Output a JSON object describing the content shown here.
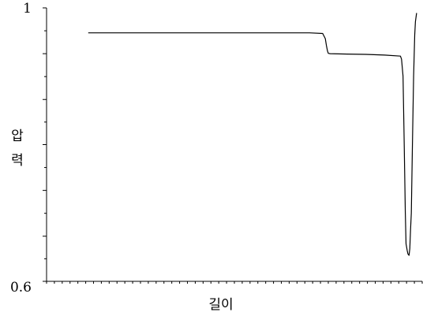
{
  "chart_data": {
    "type": "line",
    "title": "",
    "xlabel": "길이",
    "ylabel": "압력",
    "ylabel_chars": [
      "압",
      "력"
    ],
    "ylim": [
      0.6,
      1.0
    ],
    "xlim": [
      0,
      1
    ],
    "y_tick_labels": [
      {
        "value": 1.0,
        "label": "1"
      },
      {
        "value": 0.6,
        "label": "0.6"
      }
    ],
    "y_major_ticks": [
      0.6,
      0.666,
      0.733,
      0.8,
      0.866,
      0.933,
      1.0
    ],
    "x_minor_tick_count": 48,
    "grid": false,
    "series": [
      {
        "color": "#000000",
        "x": [
          0.111,
          0.2,
          0.4,
          0.6,
          0.7,
          0.735,
          0.742,
          0.745,
          0.748,
          0.75,
          0.755,
          0.8,
          0.85,
          0.9,
          0.942,
          0.945,
          0.949,
          0.952,
          0.955,
          0.957,
          0.96,
          0.962,
          0.965,
          0.967,
          0.969,
          0.971,
          0.974,
          0.977,
          0.98,
          0.982,
          0.985
        ],
        "y": [
          0.9635,
          0.9635,
          0.9635,
          0.9635,
          0.9635,
          0.9625,
          0.955,
          0.945,
          0.937,
          0.9335,
          0.933,
          0.9325,
          0.932,
          0.931,
          0.9295,
          0.925,
          0.9,
          0.8,
          0.7,
          0.655,
          0.645,
          0.64,
          0.638,
          0.648,
          0.675,
          0.7,
          0.8,
          0.9,
          0.96,
          0.98,
          0.9925
        ]
      }
    ]
  }
}
